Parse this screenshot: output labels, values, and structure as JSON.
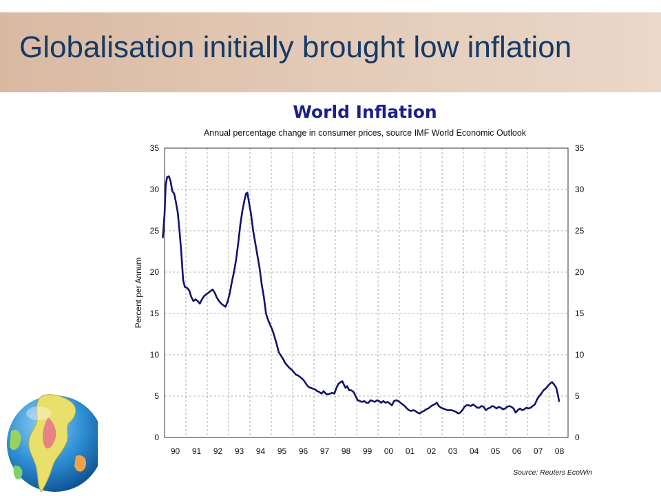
{
  "slide": {
    "title": "Globalisation initially brought low inflation"
  },
  "decor": {
    "globe_icon": "globe-icon"
  },
  "colors": {
    "banner": "#dfc3ad",
    "title_text": "#153a66",
    "chart_title": "#1a1f8c",
    "series_line": "#12126e",
    "grid": "#9a9a9a"
  },
  "chart_data": {
    "type": "line",
    "title": "World Inflation",
    "subtitle": "Annual percentage change in consumer prices, source IMF World Economic Outlook",
    "ylabel": "Percent per Annum",
    "xlabel": "",
    "source": "Source: Reuters EcoWin",
    "x_ticks": [
      "90",
      "91",
      "92",
      "93",
      "94",
      "95",
      "96",
      "97",
      "98",
      "99",
      "00",
      "01",
      "02",
      "03",
      "04",
      "05",
      "06",
      "07",
      "08"
    ],
    "y_ticks": [
      0,
      5,
      10,
      15,
      20,
      25,
      30,
      35
    ],
    "ylim": [
      0,
      35
    ],
    "xlim": [
      1990.0,
      2008.9
    ],
    "grid": true,
    "right_axis": true,
    "series": [
      {
        "points": [
          [
            1989.92,
            24.2
          ],
          [
            1990.0,
            27.0
          ],
          [
            1990.05,
            30.5
          ],
          [
            1990.12,
            31.5
          ],
          [
            1990.2,
            31.6
          ],
          [
            1990.28,
            31.0
          ],
          [
            1990.36,
            29.8
          ],
          [
            1990.45,
            29.5
          ],
          [
            1990.53,
            28.5
          ],
          [
            1990.62,
            27.2
          ],
          [
            1990.7,
            25.0
          ],
          [
            1990.78,
            22.5
          ],
          [
            1990.87,
            19.0
          ],
          [
            1990.95,
            18.2
          ],
          [
            1991.05,
            18.1
          ],
          [
            1991.15,
            17.8
          ],
          [
            1991.25,
            17.0
          ],
          [
            1991.35,
            16.5
          ],
          [
            1991.45,
            16.7
          ],
          [
            1991.55,
            16.5
          ],
          [
            1991.65,
            16.2
          ],
          [
            1991.75,
            16.7
          ],
          [
            1991.85,
            17.1
          ],
          [
            1991.95,
            17.3
          ],
          [
            1992.05,
            17.5
          ],
          [
            1992.15,
            17.7
          ],
          [
            1992.25,
            17.9
          ],
          [
            1992.35,
            17.5
          ],
          [
            1992.45,
            16.9
          ],
          [
            1992.55,
            16.5
          ],
          [
            1992.65,
            16.2
          ],
          [
            1992.75,
            16.0
          ],
          [
            1992.85,
            15.8
          ],
          [
            1992.95,
            16.4
          ],
          [
            1993.05,
            17.4
          ],
          [
            1993.15,
            18.8
          ],
          [
            1993.25,
            20.0
          ],
          [
            1993.35,
            21.5
          ],
          [
            1993.45,
            23.5
          ],
          [
            1993.55,
            25.8
          ],
          [
            1993.65,
            27.5
          ],
          [
            1993.75,
            28.8
          ],
          [
            1993.82,
            29.5
          ],
          [
            1993.88,
            29.6
          ],
          [
            1993.95,
            28.5
          ],
          [
            1994.05,
            27.0
          ],
          [
            1994.15,
            25.0
          ],
          [
            1994.25,
            23.5
          ],
          [
            1994.35,
            22.0
          ],
          [
            1994.45,
            20.5
          ],
          [
            1994.55,
            18.5
          ],
          [
            1994.65,
            17.0
          ],
          [
            1994.75,
            15.0
          ],
          [
            1994.85,
            14.2
          ],
          [
            1994.95,
            13.6
          ],
          [
            1995.05,
            13.0
          ],
          [
            1995.15,
            12.2
          ],
          [
            1995.25,
            11.3
          ],
          [
            1995.35,
            10.3
          ],
          [
            1995.45,
            9.9
          ],
          [
            1995.55,
            9.5
          ],
          [
            1995.65,
            9.0
          ],
          [
            1995.75,
            8.7
          ],
          [
            1995.85,
            8.4
          ],
          [
            1995.95,
            8.2
          ],
          [
            1996.05,
            7.9
          ],
          [
            1996.15,
            7.6
          ],
          [
            1996.25,
            7.5
          ],
          [
            1996.35,
            7.3
          ],
          [
            1996.45,
            7.1
          ],
          [
            1996.55,
            6.8
          ],
          [
            1996.65,
            6.4
          ],
          [
            1996.75,
            6.1
          ],
          [
            1996.85,
            6.0
          ],
          [
            1996.95,
            5.9
          ],
          [
            1997.05,
            5.8
          ],
          [
            1997.15,
            5.6
          ],
          [
            1997.25,
            5.5
          ],
          [
            1997.35,
            5.3
          ],
          [
            1997.45,
            5.6
          ],
          [
            1997.55,
            5.3
          ],
          [
            1997.65,
            5.2
          ],
          [
            1997.75,
            5.3
          ],
          [
            1997.85,
            5.4
          ],
          [
            1997.95,
            5.3
          ],
          [
            1998.05,
            6.0
          ],
          [
            1998.15,
            6.5
          ],
          [
            1998.25,
            6.7
          ],
          [
            1998.33,
            6.8
          ],
          [
            1998.4,
            6.4
          ],
          [
            1998.48,
            6.0
          ],
          [
            1998.55,
            6.2
          ],
          [
            1998.65,
            5.7
          ],
          [
            1998.75,
            5.7
          ],
          [
            1998.85,
            5.5
          ],
          [
            1998.95,
            5.0
          ],
          [
            1999.05,
            4.5
          ],
          [
            1999.15,
            4.4
          ],
          [
            1999.25,
            4.3
          ],
          [
            1999.35,
            4.4
          ],
          [
            1999.45,
            4.2
          ],
          [
            1999.55,
            4.2
          ],
          [
            1999.65,
            4.5
          ],
          [
            1999.75,
            4.4
          ],
          [
            1999.85,
            4.3
          ],
          [
            1999.95,
            4.5
          ],
          [
            2000.05,
            4.4
          ],
          [
            2000.15,
            4.2
          ],
          [
            2000.25,
            4.4
          ],
          [
            2000.35,
            4.2
          ],
          [
            2000.45,
            4.3
          ],
          [
            2000.55,
            4.1
          ],
          [
            2000.65,
            3.9
          ],
          [
            2000.75,
            4.4
          ],
          [
            2000.85,
            4.5
          ],
          [
            2000.95,
            4.4
          ],
          [
            2001.05,
            4.2
          ],
          [
            2001.15,
            4.0
          ],
          [
            2001.25,
            3.8
          ],
          [
            2001.35,
            3.5
          ],
          [
            2001.45,
            3.3
          ],
          [
            2001.55,
            3.2
          ],
          [
            2001.65,
            3.3
          ],
          [
            2001.75,
            3.2
          ],
          [
            2001.85,
            3.0
          ],
          [
            2001.95,
            2.9
          ],
          [
            2002.05,
            3.1
          ],
          [
            2002.15,
            3.2
          ],
          [
            2002.25,
            3.4
          ],
          [
            2002.35,
            3.5
          ],
          [
            2002.45,
            3.7
          ],
          [
            2002.55,
            3.9
          ],
          [
            2002.65,
            4.0
          ],
          [
            2002.75,
            4.2
          ],
          [
            2002.85,
            3.8
          ],
          [
            2002.95,
            3.6
          ],
          [
            2003.05,
            3.5
          ],
          [
            2003.15,
            3.4
          ],
          [
            2003.25,
            3.3
          ],
          [
            2003.35,
            3.3
          ],
          [
            2003.45,
            3.3
          ],
          [
            2003.55,
            3.2
          ],
          [
            2003.65,
            3.1
          ],
          [
            2003.75,
            2.9
          ],
          [
            2003.85,
            3.0
          ],
          [
            2003.95,
            3.3
          ],
          [
            2004.05,
            3.7
          ],
          [
            2004.15,
            3.9
          ],
          [
            2004.25,
            3.9
          ],
          [
            2004.35,
            3.8
          ],
          [
            2004.45,
            4.0
          ],
          [
            2004.55,
            3.8
          ],
          [
            2004.65,
            3.6
          ],
          [
            2004.75,
            3.6
          ],
          [
            2004.85,
            3.8
          ],
          [
            2004.95,
            3.7
          ],
          [
            2005.05,
            3.3
          ],
          [
            2005.15,
            3.5
          ],
          [
            2005.25,
            3.6
          ],
          [
            2005.35,
            3.8
          ],
          [
            2005.45,
            3.7
          ],
          [
            2005.55,
            3.5
          ],
          [
            2005.65,
            3.7
          ],
          [
            2005.75,
            3.6
          ],
          [
            2005.85,
            3.4
          ],
          [
            2005.95,
            3.5
          ],
          [
            2006.05,
            3.7
          ],
          [
            2006.15,
            3.8
          ],
          [
            2006.25,
            3.7
          ],
          [
            2006.35,
            3.5
          ],
          [
            2006.45,
            3.0
          ],
          [
            2006.55,
            3.3
          ],
          [
            2006.65,
            3.5
          ],
          [
            2006.75,
            3.3
          ],
          [
            2006.85,
            3.4
          ],
          [
            2006.95,
            3.6
          ],
          [
            2007.05,
            3.5
          ],
          [
            2007.15,
            3.6
          ],
          [
            2007.25,
            3.8
          ],
          [
            2007.35,
            4.0
          ],
          [
            2007.45,
            4.6
          ],
          [
            2007.55,
            5.0
          ],
          [
            2007.65,
            5.3
          ],
          [
            2007.75,
            5.7
          ],
          [
            2007.85,
            5.9
          ],
          [
            2007.95,
            6.2
          ],
          [
            2008.05,
            6.5
          ],
          [
            2008.15,
            6.7
          ],
          [
            2008.25,
            6.4
          ],
          [
            2008.35,
            6.0
          ],
          [
            2008.42,
            5.2
          ],
          [
            2008.48,
            4.4
          ]
        ]
      }
    ]
  }
}
